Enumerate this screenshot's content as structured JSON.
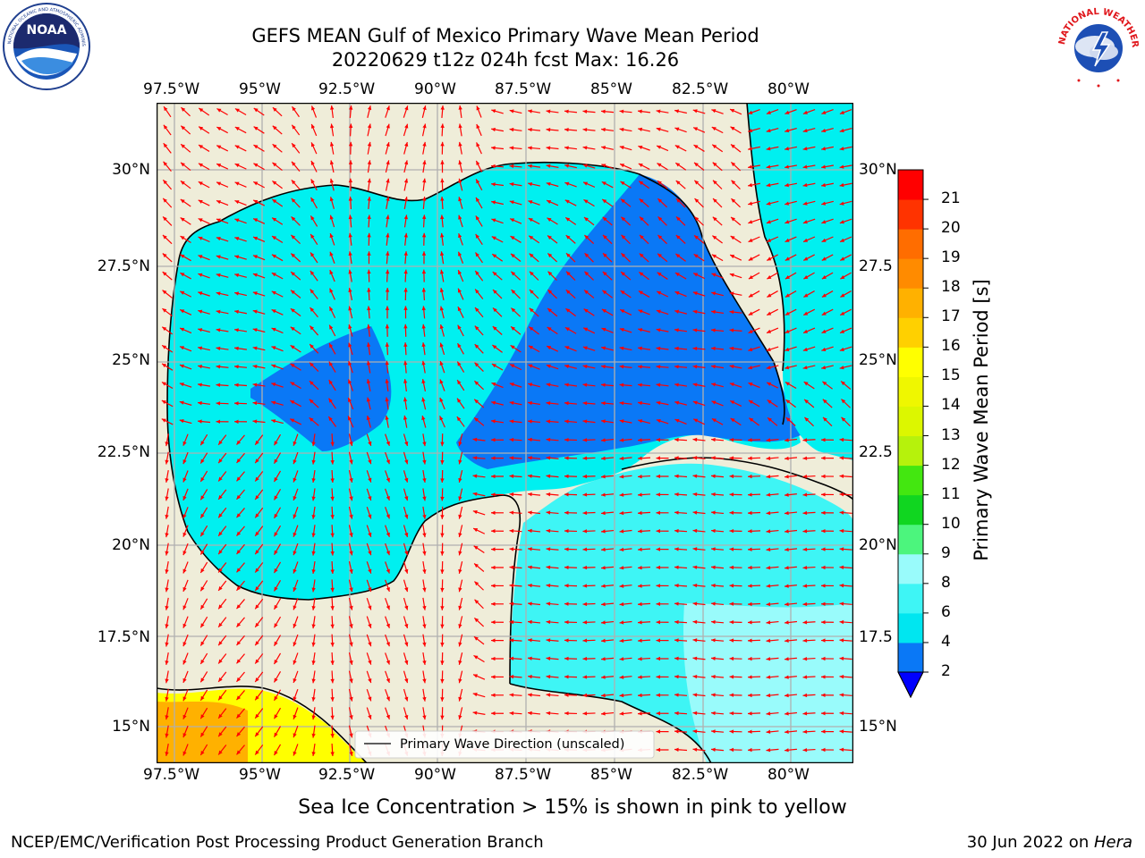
{
  "header": {
    "title_line1": "GEFS MEAN Gulf of Mexico Primary Wave Mean Period",
    "title_line2": "20220629 t12z 024h fcst   Max: 16.26"
  },
  "logos": {
    "left_icon": "noaa-logo-icon",
    "left_text": "NOAA",
    "left_ring_text": "NATIONAL OCEANIC AND ATMOSPHERIC ADMINISTRATION · U.S. DEPARTMENT OF COMMERCE",
    "right_icon": "nws-logo-icon",
    "right_ring_text": "NATIONAL WEATHER SERVICE"
  },
  "map": {
    "lon_ticks": [
      "97.5°W",
      "95°W",
      "92.5°W",
      "90°W",
      "87.5°W",
      "85°W",
      "82.5°W",
      "80°W"
    ],
    "lat_ticks_left": [
      "30°N",
      "27.5°N",
      "25°N",
      "22.5°N",
      "20°N",
      "17.5°N",
      "15°N"
    ],
    "lat_ticks_right": [
      "30°N",
      "27.5",
      "25°N",
      "22.5",
      "20°N",
      "17.5",
      "15°N"
    ],
    "legend_label": "Primary Wave Direction (unscaled)",
    "colors": {
      "land": "#efedd9",
      "coast": "#000000",
      "grid": "#b0b0b0",
      "arrow": "#ff0000"
    }
  },
  "colorbar": {
    "label": "Primary Wave Mean Period [s]",
    "ticks": [
      "2",
      "4",
      "6",
      "8",
      "9",
      "10",
      "11",
      "12",
      "13",
      "14",
      "15",
      "16",
      "17",
      "18",
      "19",
      "20",
      "21"
    ],
    "colors": [
      "#0a78f6",
      "#00e6f0",
      "#3ef5f5",
      "#99fbfb",
      "#4cf57d",
      "#10d620",
      "#43e710",
      "#b6f20c",
      "#dcf700",
      "#eff700",
      "#ffff00",
      "#ffd000",
      "#ffb100",
      "#ff8b00",
      "#ff6d00",
      "#ff3300",
      "#ff0000"
    ],
    "extend_color": "#0000ff"
  },
  "notes": {
    "sea_ice": "Sea Ice Concentration > 15% is shown in pink to yellow"
  },
  "footer": {
    "left": "NCEP/EMC/Verification Post Processing Product Generation Branch",
    "right_date": "30 Jun 2022 on ",
    "right_host": "Hera"
  }
}
